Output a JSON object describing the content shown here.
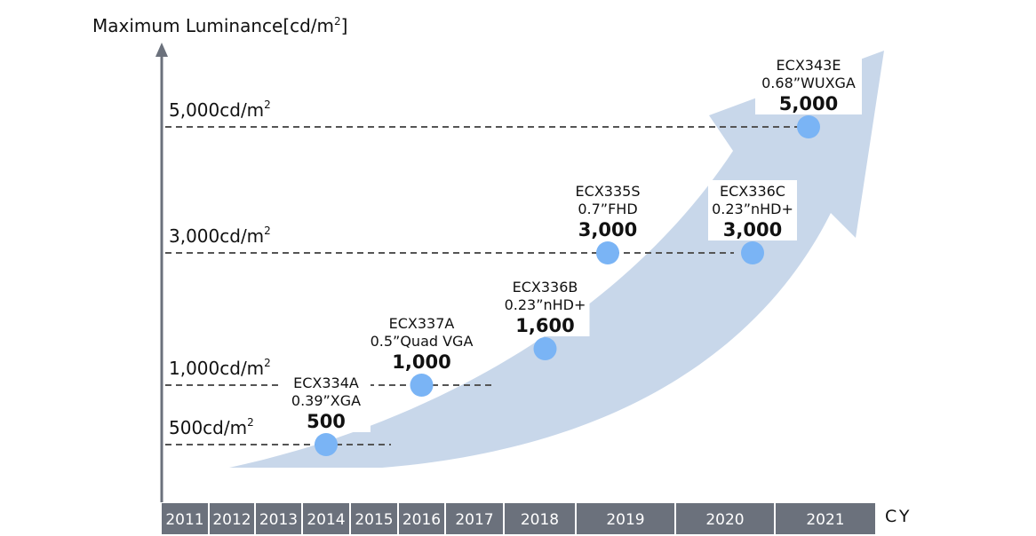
{
  "chart_data": {
    "type": "scatter",
    "ylabel": "Maximum Luminance[cd/m",
    "ylabel_sup": "2",
    "ylabel_close": "]",
    "xlabel": "CY",
    "levels": [
      {
        "value": 500,
        "label": "500cd/m",
        "sup": "2"
      },
      {
        "value": 1000,
        "label": "1,000cd/m",
        "sup": "2"
      },
      {
        "value": 3000,
        "label": "3,000cd/m",
        "sup": "2"
      },
      {
        "value": 5000,
        "label": "5,000cd/m",
        "sup": "2"
      }
    ],
    "x_categories": [
      "2011",
      "2012",
      "2013",
      "2014",
      "2015",
      "2016",
      "2017",
      "2018",
      "2019",
      "2020",
      "2021"
    ],
    "points": [
      {
        "year": "2014",
        "model": "ECX334A",
        "size": "0.39”XGA",
        "value": 500,
        "value_label": "500"
      },
      {
        "year": "2016",
        "model": "ECX337A",
        "size": "0.5”Quad VGA",
        "value": 1000,
        "value_label": "1,000"
      },
      {
        "year": "2018",
        "model": "ECX336B",
        "size": "0.23”nHD+",
        "value": 1600,
        "value_label": "1,600"
      },
      {
        "year": "2019",
        "model": "ECX335S",
        "size": "0.7”FHD",
        "value": 3000,
        "value_label": "3,000"
      },
      {
        "year": "2020",
        "model": "ECX336C",
        "size": "0.23”nHD+",
        "value": 3000,
        "value_label": "3,000"
      },
      {
        "year": "2021",
        "model": "ECX343E",
        "size": "0.68”WUXGA",
        "value": 5000,
        "value_label": "5,000"
      }
    ],
    "colors": {
      "axis": "#6b717c",
      "year_bar": "#6b717c",
      "point": "#7ab4f5",
      "arrow": "#c8d7ea",
      "dashed": "#555555"
    }
  }
}
